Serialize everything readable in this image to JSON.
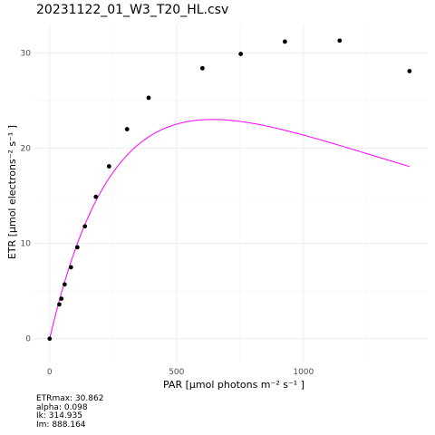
{
  "chart_data": {
    "type": "scatter",
    "title": "20231122_01_W3_T20_HL.csv",
    "xlabel": "PAR [µmol photons m⁻² s⁻¹ ]",
    "ylabel": "ETR [µmol electrons⁻² s⁻¹ ]",
    "xlim": [
      -60,
      1490
    ],
    "ylim": [
      -2.5,
      33
    ],
    "x_ticks": [
      0,
      500,
      1000
    ],
    "y_ticks": [
      0,
      10,
      20,
      30
    ],
    "grid": true,
    "colors": {
      "points": "#000000",
      "fit": "#ff00ff"
    },
    "series": [
      {
        "type": "scatter",
        "x": [
          0,
          38,
          46,
          59,
          84,
          109,
          139,
          182,
          234,
          305,
          390,
          602,
          753,
          927,
          1143,
          1418
        ],
        "y": [
          0.0,
          3.6,
          4.2,
          5.7,
          7.5,
          9.6,
          11.8,
          14.9,
          18.1,
          22.0,
          25.3,
          28.4,
          29.9,
          31.2,
          31.3,
          28.1
        ]
      },
      {
        "type": "line",
        "model": "platt",
        "x_range": [
          0,
          1418
        ],
        "params": {
          "alpha": 0.114,
          "beta": 0.0172,
          "ps": 36.0
        }
      }
    ]
  },
  "stats": {
    "etrmax": "ETRmax: 30.862",
    "alpha": "alpha: 0.098",
    "ik": "Ik: 314.935",
    "im": "Im: 888.164"
  }
}
